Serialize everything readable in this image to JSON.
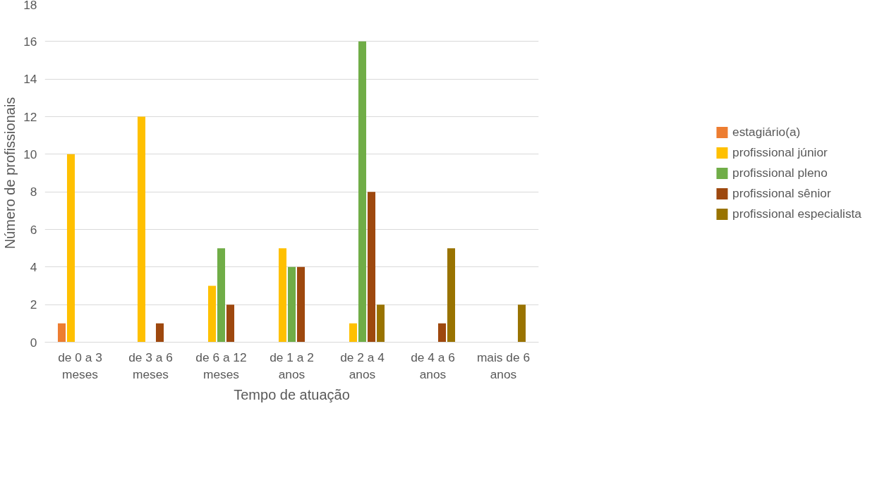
{
  "chart_data": {
    "type": "bar",
    "xlabel": "Tempo de atuação",
    "ylabel": "Número de profissionais",
    "categories": [
      "de 0 a 3\nmeses",
      "de 3 a 6\nmeses",
      "de 6 a 12\nmeses",
      "de 1 a 2\nanos",
      "de 2 a 4\nanos",
      "de 4 a 6\nanos",
      "mais de 6\nanos"
    ],
    "series": [
      {
        "name": "estagiário(a)",
        "color": "#ed7d31",
        "values": [
          1,
          0,
          0,
          0,
          0,
          0,
          0
        ]
      },
      {
        "name": "profissional júnior",
        "color": "#ffc000",
        "values": [
          10,
          12,
          3,
          5,
          1,
          0,
          0
        ]
      },
      {
        "name": "profissional pleno",
        "color": "#70ad47",
        "values": [
          0,
          0,
          5,
          4,
          16,
          0,
          0
        ]
      },
      {
        "name": "profissional sênior",
        "color": "#9e480e",
        "values": [
          0,
          1,
          2,
          4,
          8,
          1,
          0
        ]
      },
      {
        "name": "profissional especialista",
        "color": "#997300",
        "values": [
          0,
          0,
          0,
          0,
          2,
          5,
          2
        ]
      }
    ],
    "ylim": [
      0,
      18
    ],
    "yticks": [
      0,
      2,
      4,
      6,
      8,
      10,
      12,
      14,
      16,
      18
    ],
    "grid": "y",
    "legend": "right"
  }
}
